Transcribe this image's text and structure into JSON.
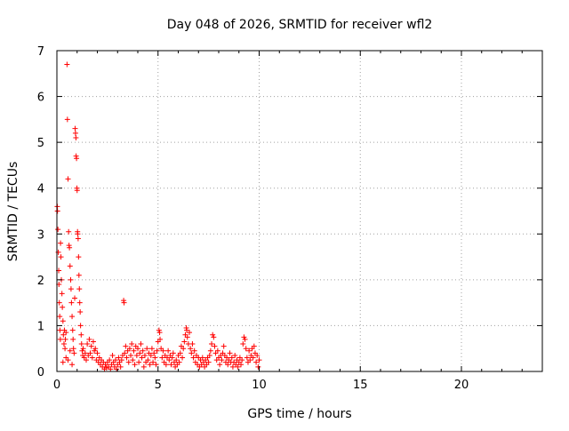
{
  "chart_data": {
    "type": "scatter",
    "title": "Day 048 of 2026, SRMTID for receiver wfl2",
    "xlabel": "GPS time / hours",
    "ylabel": "SRMTID / TECUs",
    "xlim": [
      0,
      24
    ],
    "ylim": [
      0,
      7
    ],
    "xticks": [
      0,
      5,
      10,
      15,
      20
    ],
    "yticks": [
      0,
      1,
      2,
      3,
      4,
      5,
      6,
      7
    ],
    "grid": true,
    "marker": "+",
    "series": [
      {
        "name": "SRMTID",
        "color": "#ff0000",
        "points": [
          [
            0.02,
            3.6
          ],
          [
            0.03,
            3.5
          ],
          [
            0.05,
            3.1
          ],
          [
            0.07,
            2.6
          ],
          [
            0.09,
            2.2
          ],
          [
            0.1,
            1.9
          ],
          [
            0.12,
            1.5
          ],
          [
            0.14,
            1.2
          ],
          [
            0.15,
            0.9
          ],
          [
            0.17,
            0.7
          ],
          [
            0.18,
            2.8
          ],
          [
            0.2,
            2.5
          ],
          [
            0.22,
            2.0
          ],
          [
            0.25,
            1.7
          ],
          [
            0.27,
            1.4
          ],
          [
            0.3,
            1.1
          ],
          [
            0.32,
            0.8
          ],
          [
            0.35,
            0.6
          ],
          [
            0.37,
            0.9
          ],
          [
            0.4,
            0.5
          ],
          [
            0.42,
            0.7
          ],
          [
            0.45,
            0.85
          ],
          [
            0.5,
            6.7
          ],
          [
            0.52,
            5.5
          ],
          [
            0.55,
            4.2
          ],
          [
            0.58,
            3.05
          ],
          [
            0.6,
            2.75
          ],
          [
            0.62,
            2.7
          ],
          [
            0.65,
            2.3
          ],
          [
            0.68,
            2.0
          ],
          [
            0.7,
            1.8
          ],
          [
            0.72,
            1.5
          ],
          [
            0.75,
            1.2
          ],
          [
            0.78,
            0.9
          ],
          [
            0.8,
            0.7
          ],
          [
            0.82,
            0.5
          ],
          [
            0.85,
            0.4
          ],
          [
            0.88,
            1.6
          ],
          [
            0.9,
            5.3
          ],
          [
            0.92,
            5.2
          ],
          [
            0.94,
            5.1
          ],
          [
            0.95,
            4.7
          ],
          [
            0.97,
            4.65
          ],
          [
            0.99,
            4.0
          ],
          [
            1.0,
            3.95
          ],
          [
            1.02,
            3.05
          ],
          [
            1.03,
            3.0
          ],
          [
            1.05,
            2.9
          ],
          [
            1.07,
            2.5
          ],
          [
            1.09,
            2.1
          ],
          [
            1.11,
            1.8
          ],
          [
            1.13,
            1.5
          ],
          [
            1.15,
            1.3
          ],
          [
            1.17,
            1.0
          ],
          [
            1.2,
            0.8
          ],
          [
            1.22,
            0.6
          ],
          [
            1.25,
            0.45
          ],
          [
            1.28,
            0.35
          ],
          [
            0.3,
            0.2
          ],
          [
            0.45,
            0.3
          ],
          [
            0.55,
            0.25
          ],
          [
            0.65,
            0.45
          ],
          [
            0.75,
            0.15
          ],
          [
            1.3,
            0.5
          ],
          [
            1.35,
            0.3
          ],
          [
            1.4,
            0.4
          ],
          [
            1.45,
            0.25
          ],
          [
            1.5,
            0.6
          ],
          [
            1.55,
            0.35
          ],
          [
            1.6,
            0.7
          ],
          [
            1.65,
            0.4
          ],
          [
            1.7,
            0.55
          ],
          [
            1.75,
            0.3
          ],
          [
            1.8,
            0.65
          ],
          [
            1.85,
            0.45
          ],
          [
            1.9,
            0.5
          ],
          [
            1.95,
            0.25
          ],
          [
            2.0,
            0.4
          ],
          [
            2.05,
            0.2
          ],
          [
            2.1,
            0.3
          ],
          [
            2.15,
            0.15
          ],
          [
            2.2,
            0.25
          ],
          [
            2.25,
            0.1
          ],
          [
            2.3,
            0.2
          ],
          [
            2.35,
            0.05
          ],
          [
            2.4,
            0.15
          ],
          [
            2.45,
            0.08
          ],
          [
            2.5,
            0.2
          ],
          [
            2.55,
            0.1
          ],
          [
            2.6,
            0.25
          ],
          [
            2.65,
            0.05
          ],
          [
            2.7,
            0.15
          ],
          [
            2.75,
            0.35
          ],
          [
            2.8,
            0.2
          ],
          [
            2.85,
            0.1
          ],
          [
            2.9,
            0.25
          ],
          [
            2.95,
            0.05
          ],
          [
            3.0,
            0.15
          ],
          [
            3.05,
            0.3
          ],
          [
            3.1,
            0.2
          ],
          [
            3.15,
            0.1
          ],
          [
            3.2,
            0.25
          ],
          [
            3.25,
            0.35
          ],
          [
            3.3,
            1.55
          ],
          [
            3.32,
            1.5
          ],
          [
            3.35,
            0.4
          ],
          [
            3.4,
            0.55
          ],
          [
            3.45,
            0.3
          ],
          [
            3.5,
            0.45
          ],
          [
            3.55,
            0.2
          ],
          [
            3.6,
            0.5
          ],
          [
            3.65,
            0.35
          ],
          [
            3.7,
            0.6
          ],
          [
            3.75,
            0.25
          ],
          [
            3.8,
            0.45
          ],
          [
            3.85,
            0.15
          ],
          [
            3.9,
            0.55
          ],
          [
            3.95,
            0.35
          ],
          [
            4.0,
            0.5
          ],
          [
            4.05,
            0.2
          ],
          [
            4.1,
            0.4
          ],
          [
            4.15,
            0.6
          ],
          [
            4.2,
            0.3
          ],
          [
            4.25,
            0.45
          ],
          [
            4.3,
            0.1
          ],
          [
            4.35,
            0.35
          ],
          [
            4.4,
            0.2
          ],
          [
            4.45,
            0.5
          ],
          [
            4.5,
            0.25
          ],
          [
            4.55,
            0.4
          ],
          [
            4.6,
            0.15
          ],
          [
            4.65,
            0.35
          ],
          [
            4.7,
            0.5
          ],
          [
            4.75,
            0.2
          ],
          [
            4.8,
            0.4
          ],
          [
            4.85,
            0.3
          ],
          [
            4.9,
            0.15
          ],
          [
            4.95,
            0.45
          ],
          [
            5.0,
            0.65
          ],
          [
            5.05,
            0.9
          ],
          [
            5.08,
            0.85
          ],
          [
            5.1,
            0.7
          ],
          [
            5.15,
            0.5
          ],
          [
            5.2,
            0.3
          ],
          [
            5.25,
            0.45
          ],
          [
            5.3,
            0.2
          ],
          [
            5.35,
            0.35
          ],
          [
            5.4,
            0.15
          ],
          [
            5.45,
            0.3
          ],
          [
            5.5,
            0.45
          ],
          [
            5.55,
            0.25
          ],
          [
            5.6,
            0.35
          ],
          [
            5.65,
            0.15
          ],
          [
            5.7,
            0.3
          ],
          [
            5.75,
            0.4
          ],
          [
            5.8,
            0.2
          ],
          [
            5.85,
            0.1
          ],
          [
            5.9,
            0.25
          ],
          [
            5.95,
            0.15
          ],
          [
            6.0,
            0.35
          ],
          [
            6.05,
            0.2
          ],
          [
            6.1,
            0.4
          ],
          [
            6.15,
            0.55
          ],
          [
            6.2,
            0.3
          ],
          [
            6.25,
            0.5
          ],
          [
            6.3,
            0.65
          ],
          [
            6.35,
            0.8
          ],
          [
            6.4,
            0.95
          ],
          [
            6.42,
            0.9
          ],
          [
            6.45,
            0.75
          ],
          [
            6.5,
            0.6
          ],
          [
            6.55,
            0.85
          ],
          [
            6.6,
            0.5
          ],
          [
            6.65,
            0.4
          ],
          [
            6.7,
            0.6
          ],
          [
            6.75,
            0.3
          ],
          [
            6.8,
            0.45
          ],
          [
            6.85,
            0.2
          ],
          [
            6.9,
            0.35
          ],
          [
            6.95,
            0.15
          ],
          [
            7.0,
            0.3
          ],
          [
            7.05,
            0.1
          ],
          [
            7.1,
            0.25
          ],
          [
            7.15,
            0.15
          ],
          [
            7.2,
            0.3
          ],
          [
            7.25,
            0.2
          ],
          [
            7.3,
            0.1
          ],
          [
            7.35,
            0.25
          ],
          [
            7.4,
            0.15
          ],
          [
            7.45,
            0.3
          ],
          [
            7.5,
            0.2
          ],
          [
            7.55,
            0.35
          ],
          [
            7.6,
            0.45
          ],
          [
            7.65,
            0.6
          ],
          [
            7.7,
            0.8
          ],
          [
            7.75,
            0.75
          ],
          [
            7.8,
            0.55
          ],
          [
            7.85,
            0.4
          ],
          [
            7.9,
            0.25
          ],
          [
            7.95,
            0.45
          ],
          [
            8.0,
            0.3
          ],
          [
            8.05,
            0.15
          ],
          [
            8.1,
            0.35
          ],
          [
            8.15,
            0.25
          ],
          [
            8.2,
            0.4
          ],
          [
            8.25,
            0.55
          ],
          [
            8.3,
            0.35
          ],
          [
            8.35,
            0.2
          ],
          [
            8.4,
            0.3
          ],
          [
            8.45,
            0.15
          ],
          [
            8.5,
            0.25
          ],
          [
            8.55,
            0.4
          ],
          [
            8.6,
            0.2
          ],
          [
            8.65,
            0.3
          ],
          [
            8.7,
            0.1
          ],
          [
            8.75,
            0.2
          ],
          [
            8.8,
            0.35
          ],
          [
            8.85,
            0.15
          ],
          [
            8.9,
            0.25
          ],
          [
            8.95,
            0.1
          ],
          [
            9.0,
            0.2
          ],
          [
            9.05,
            0.3
          ],
          [
            9.1,
            0.15
          ],
          [
            9.15,
            0.25
          ],
          [
            9.2,
            0.6
          ],
          [
            9.25,
            0.75
          ],
          [
            9.3,
            0.7
          ],
          [
            9.35,
            0.5
          ],
          [
            9.4,
            0.3
          ],
          [
            9.45,
            0.2
          ],
          [
            9.5,
            0.45
          ],
          [
            9.55,
            0.25
          ],
          [
            9.6,
            0.35
          ],
          [
            9.65,
            0.5
          ],
          [
            9.7,
            0.3
          ],
          [
            9.75,
            0.55
          ],
          [
            9.8,
            0.4
          ],
          [
            9.85,
            0.2
          ],
          [
            9.9,
            0.35
          ],
          [
            9.95,
            0.1
          ],
          [
            10.0,
            0.25
          ]
        ]
      }
    ]
  }
}
